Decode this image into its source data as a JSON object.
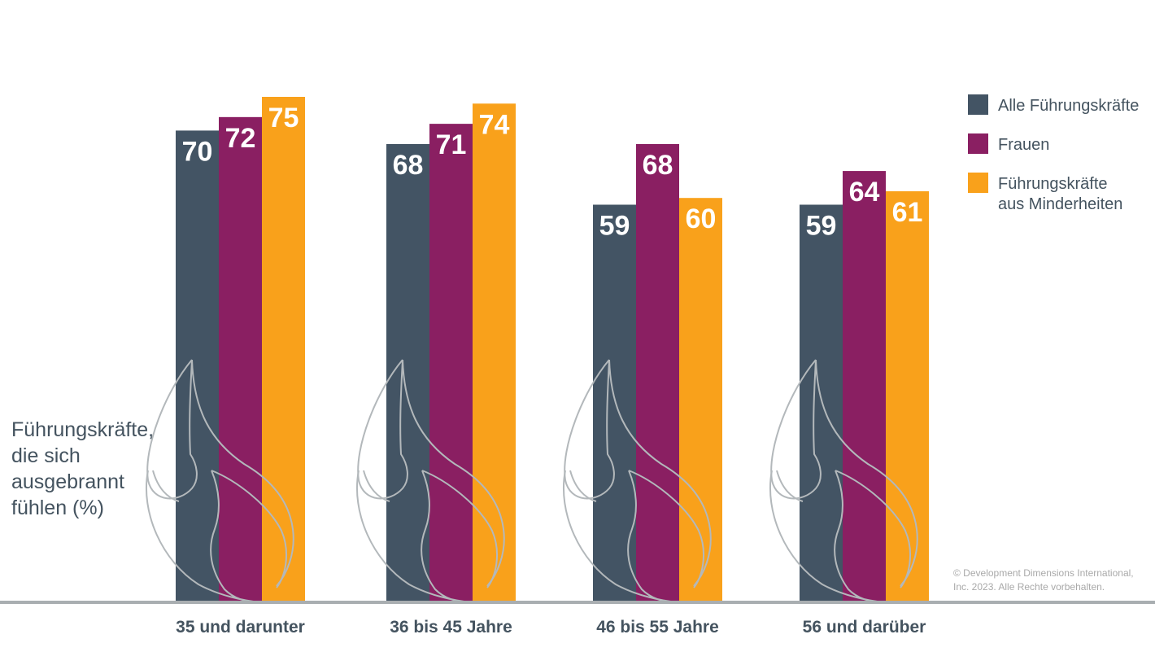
{
  "chart_data": {
    "type": "bar",
    "categories": [
      "35 und darunter",
      "36 bis 45 Jahre",
      "46 bis 55 Jahre",
      "56 und darüber"
    ],
    "series": [
      {
        "name": "Alle Führungskräfte",
        "values": [
          70,
          68,
          59,
          59
        ],
        "color": "#435464"
      },
      {
        "name": "Frauen",
        "values": [
          72,
          71,
          68,
          64
        ],
        "color": "#8a1f62"
      },
      {
        "name": "Führungskräfte aus Minderheiten",
        "values": [
          75,
          74,
          60,
          61
        ],
        "color": "#f9a11b"
      }
    ],
    "ylabel_lines": [
      "Führungskräfte,",
      "die sich",
      "ausgebrannt",
      "fühlen (%)"
    ],
    "legend": {
      "position": "top-right",
      "items": [
        {
          "lines": [
            "Alle Führungskräfte"
          ],
          "color": "#435464"
        },
        {
          "lines": [
            "Frauen"
          ],
          "color": "#8a1f62"
        },
        {
          "lines": [
            "Führungskräfte",
            "aus Minderheiten"
          ],
          "color": "#f9a11b"
        }
      ]
    },
    "value_axis": {
      "max_bar_value_shown": 75
    },
    "grid": false
  },
  "copyright_lines": [
    "© Development Dimensions International,",
    "Inc. 2023. Alle Rechte vorbehalten."
  ],
  "decoration_icon": "flame-outline-icon"
}
